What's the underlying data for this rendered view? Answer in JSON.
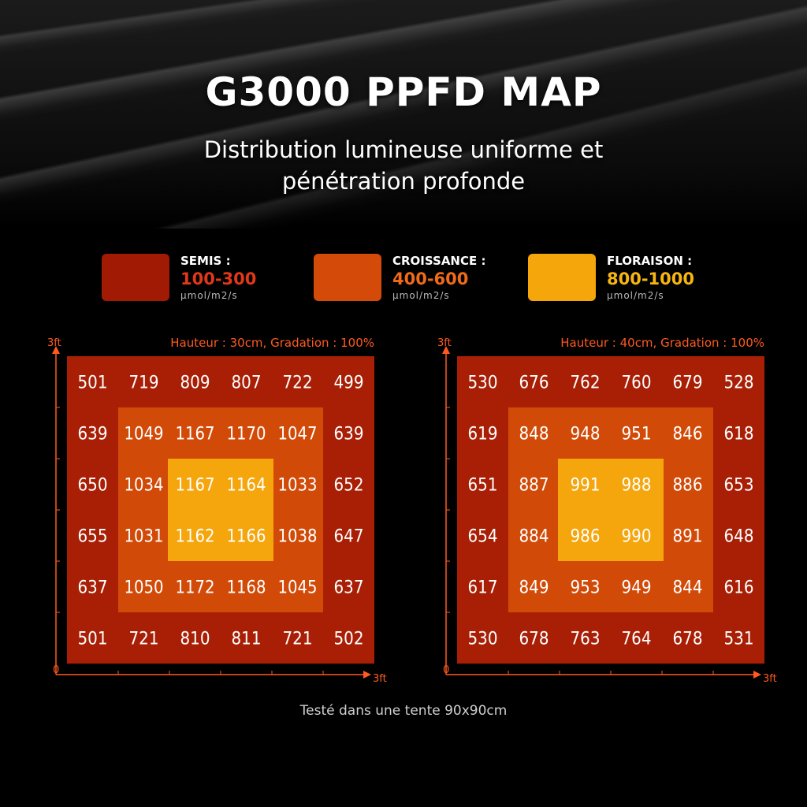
{
  "header": {
    "title": "G3000 PPFD MAP",
    "subtitle_line1": "Distribution lumineuse uniforme et",
    "subtitle_line2": "pénétration profonde"
  },
  "legend": [
    {
      "label": "SEMIS :",
      "range": "100-300",
      "unit": "μmol/m2/s",
      "color": "#a01a04",
      "text_color": "#e03818"
    },
    {
      "label": "CROISSANCE :",
      "range": "400-600",
      "unit": "μmol/m2/s",
      "color": "#d44a08",
      "text_color": "#f06a18"
    },
    {
      "label": "FLORAISON :",
      "range": "800-1000",
      "unit": "μmol/m2/s",
      "color": "#f5a60a",
      "text_color": "#f7b512"
    }
  ],
  "chart_data": [
    {
      "type": "heatmap",
      "title": "Hauteur : 30cm, Gradation : 100%",
      "y_axis_label": "3ft",
      "x_axis_label": "3ft",
      "origin_label": "0",
      "rows": [
        [
          501,
          719,
          809,
          807,
          722,
          499
        ],
        [
          639,
          1049,
          1167,
          1170,
          1047,
          639
        ],
        [
          650,
          1034,
          1167,
          1164,
          1033,
          652
        ],
        [
          655,
          1031,
          1162,
          1166,
          1038,
          647
        ],
        [
          637,
          1050,
          1172,
          1168,
          1045,
          637
        ],
        [
          501,
          721,
          810,
          811,
          721,
          502
        ]
      ]
    },
    {
      "type": "heatmap",
      "title": "Hauteur : 40cm, Gradation : 100%",
      "y_axis_label": "3ft",
      "x_axis_label": "3ft",
      "origin_label": "0",
      "rows": [
        [
          530,
          676,
          762,
          760,
          679,
          528
        ],
        [
          619,
          848,
          948,
          951,
          846,
          618
        ],
        [
          651,
          887,
          991,
          988,
          886,
          653
        ],
        [
          654,
          884,
          986,
          990,
          891,
          648
        ],
        [
          617,
          849,
          953,
          949,
          844,
          616
        ],
        [
          530,
          678,
          763,
          764,
          678,
          531
        ]
      ]
    }
  ],
  "footer": {
    "caption": "Testé dans une tente 90x90cm"
  },
  "colors": {
    "outer_zone": "#a81f06",
    "middle_zone": "#d24a08",
    "inner_zone": "#f4a60c",
    "axis": "#ff5a1f",
    "value_text": "#ffffff"
  }
}
